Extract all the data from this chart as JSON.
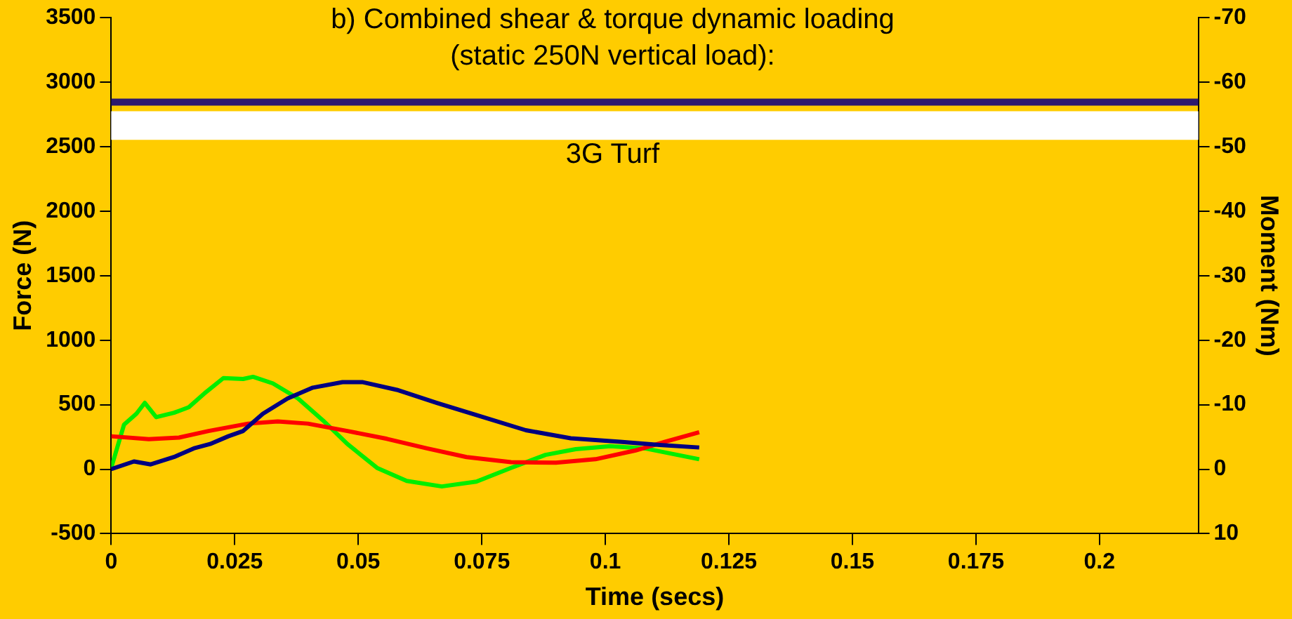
{
  "chart_data": {
    "type": "line",
    "title": "b) Combined shear & torque dynamic loading\n(static 250N vertical load):",
    "subtitle": "3G Turf",
    "xlabel": "Time (secs)",
    "ylabel": "Force (N)",
    "y2label": "Moment (Nm)",
    "xlim": [
      0,
      0.22
    ],
    "xticks": [
      0,
      0.025,
      0.05,
      0.075,
      0.1,
      0.125,
      0.15,
      0.175,
      0.2
    ],
    "ylim": [
      -500,
      3500
    ],
    "yticks": [
      -500,
      0,
      500,
      1000,
      1500,
      2000,
      2500,
      3000,
      3500
    ],
    "y2lim": [
      10,
      -70
    ],
    "y2ticks": [
      10,
      0,
      -10,
      -20,
      -30,
      -40,
      -50,
      -60,
      -70
    ],
    "grid": false,
    "legend": false,
    "marker": "none",
    "line_style": "solid",
    "bands": [
      {
        "axis": "y",
        "from": 2553,
        "to": 2775,
        "color": "#ffffff"
      }
    ],
    "ref_lines": [
      {
        "axis": "y",
        "value": 2845,
        "color": "#2e1a6e"
      }
    ],
    "series": [
      {
        "color": "#000080",
        "x": [
          0,
          0.0046,
          0.008,
          0.0127,
          0.0167,
          0.02,
          0.0237,
          0.0267,
          0.0307,
          0.0357,
          0.0408,
          0.0468,
          0.0508,
          0.0578,
          0.0659,
          0.0739,
          0.0839,
          0.093,
          0.103,
          0.111,
          0.119
        ],
        "values": [
          0,
          60,
          37,
          94,
          161,
          195,
          255,
          296,
          430,
          548,
          632,
          675,
          675,
          615,
          514,
          420,
          302,
          239,
          212,
          188,
          168
        ]
      },
      {
        "color": "#ff0000",
        "x": [
          0,
          0.0076,
          0.0137,
          0.0197,
          0.0277,
          0.0337,
          0.0398,
          0.0478,
          0.0558,
          0.0639,
          0.0719,
          0.0809,
          0.09,
          0.098,
          0.106,
          0.112,
          0.119
        ],
        "values": [
          255,
          232,
          245,
          296,
          353,
          370,
          353,
          296,
          235,
          161,
          94,
          54,
          50,
          77,
          144,
          212,
          286
        ]
      },
      {
        "color": "#00ee00",
        "x": [
          0,
          0.0026,
          0.0051,
          0.0068,
          0.0091,
          0.0127,
          0.0157,
          0.0192,
          0.0227,
          0.0267,
          0.0287,
          0.0327,
          0.0378,
          0.0428,
          0.0478,
          0.0538,
          0.0598,
          0.0669,
          0.0739,
          0.0809,
          0.0879,
          0.094,
          0.101,
          0.108,
          0.119
        ],
        "values": [
          10,
          346,
          430,
          514,
          403,
          437,
          480,
          598,
          706,
          699,
          716,
          665,
          548,
          380,
          195,
          10,
          -91,
          -134,
          -97,
          10,
          111,
          155,
          178,
          161,
          77
        ]
      }
    ]
  }
}
